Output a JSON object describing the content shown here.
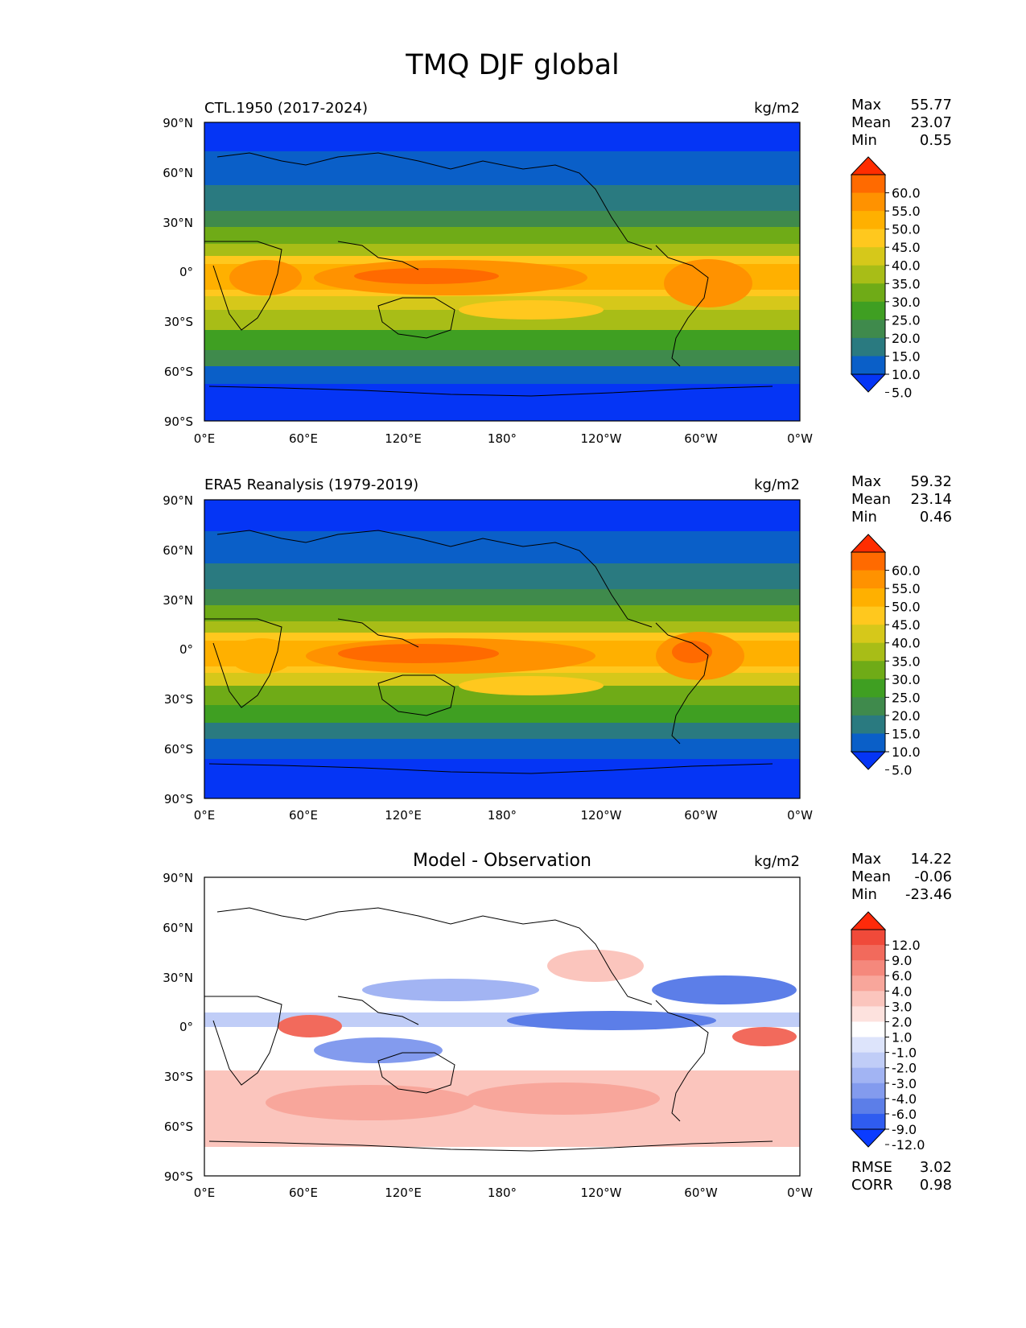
{
  "figure": {
    "title": "TMQ DJF global"
  },
  "chart_data": [
    {
      "type": "heatmap",
      "title": "CTL.1950 (2017-2024)",
      "units": "kg/m2",
      "stats": [
        {
          "label": "Max",
          "value": "55.77"
        },
        {
          "label": "Mean",
          "value": "23.07"
        },
        {
          "label": "Min",
          "value": "0.55"
        }
      ],
      "colorbar": {
        "levels": [
          "60.0",
          "55.0",
          "50.0",
          "45.0",
          "40.0",
          "35.0",
          "30.0",
          "25.0",
          "20.0",
          "15.0",
          "10.0",
          "5.0"
        ],
        "colors": [
          "#ff2d00",
          "#ff6a00",
          "#ff9200",
          "#ffb000",
          "#ffc81e",
          "#d6c81a",
          "#a8bd17",
          "#6fab17",
          "#3f9f22",
          "#3f8a4c",
          "#2a7a80",
          "#0a5fc8",
          "#0535f5"
        ]
      },
      "x_ticks": [
        "0°E",
        "60°E",
        "120°E",
        "180°",
        "120°W",
        "60°W",
        "0°W"
      ],
      "y_ticks": [
        "90°N",
        "60°N",
        "30°N",
        "0°",
        "30°S",
        "60°S",
        "90°S"
      ],
      "xlim": [
        0,
        360
      ],
      "ylim": [
        -90,
        90
      ]
    },
    {
      "type": "heatmap",
      "title": "ERA5 Reanalysis (1979-2019)",
      "units": "kg/m2",
      "stats": [
        {
          "label": "Max",
          "value": "59.32"
        },
        {
          "label": "Mean",
          "value": "23.14"
        },
        {
          "label": "Min",
          "value": "0.46"
        }
      ],
      "colorbar": {
        "levels": [
          "60.0",
          "55.0",
          "50.0",
          "45.0",
          "40.0",
          "35.0",
          "30.0",
          "25.0",
          "20.0",
          "15.0",
          "10.0",
          "5.0"
        ],
        "colors": [
          "#ff2d00",
          "#ff6a00",
          "#ff9200",
          "#ffb000",
          "#ffc81e",
          "#d6c81a",
          "#a8bd17",
          "#6fab17",
          "#3f9f22",
          "#3f8a4c",
          "#2a7a80",
          "#0a5fc8",
          "#0535f5"
        ]
      },
      "x_ticks": [
        "0°E",
        "60°E",
        "120°E",
        "180°",
        "120°W",
        "60°W",
        "0°W"
      ],
      "y_ticks": [
        "90°N",
        "60°N",
        "30°N",
        "0°",
        "30°S",
        "60°S",
        "90°S"
      ],
      "xlim": [
        0,
        360
      ],
      "ylim": [
        -90,
        90
      ]
    },
    {
      "type": "heatmap",
      "title": "Model - Observation",
      "units": "kg/m2",
      "stats": [
        {
          "label": "Max",
          "value": "14.22"
        },
        {
          "label": "Mean",
          "value": "-0.06"
        },
        {
          "label": "Min",
          "value": "-23.46"
        }
      ],
      "colorbar": {
        "levels": [
          "12.0",
          "9.0",
          "6.0",
          "4.0",
          "3.0",
          "2.0",
          "1.0",
          "-1.0",
          "-2.0",
          "-3.0",
          "-4.0",
          "-6.0",
          "-9.0",
          "-12.0"
        ],
        "colors": [
          "#ff2a0a",
          "#f04a3a",
          "#f26a5c",
          "#f5887c",
          "#f8a69b",
          "#fbc5bd",
          "#fde2de",
          "#ffffff",
          "#dde4fb",
          "#c0cdf7",
          "#a2b4f3",
          "#839bee",
          "#5c7ee8",
          "#2f5cf0",
          "#0a3cff"
        ]
      },
      "extra_stats": [
        {
          "label": "RMSE",
          "value": "3.02"
        },
        {
          "label": "CORR",
          "value": "0.98"
        }
      ],
      "x_ticks": [
        "0°E",
        "60°E",
        "120°E",
        "180°",
        "120°W",
        "60°W",
        "0°W"
      ],
      "y_ticks": [
        "90°N",
        "60°N",
        "30°N",
        "0°",
        "30°S",
        "60°S",
        "90°S"
      ],
      "xlim": [
        0,
        360
      ],
      "ylim": [
        -90,
        90
      ]
    }
  ]
}
